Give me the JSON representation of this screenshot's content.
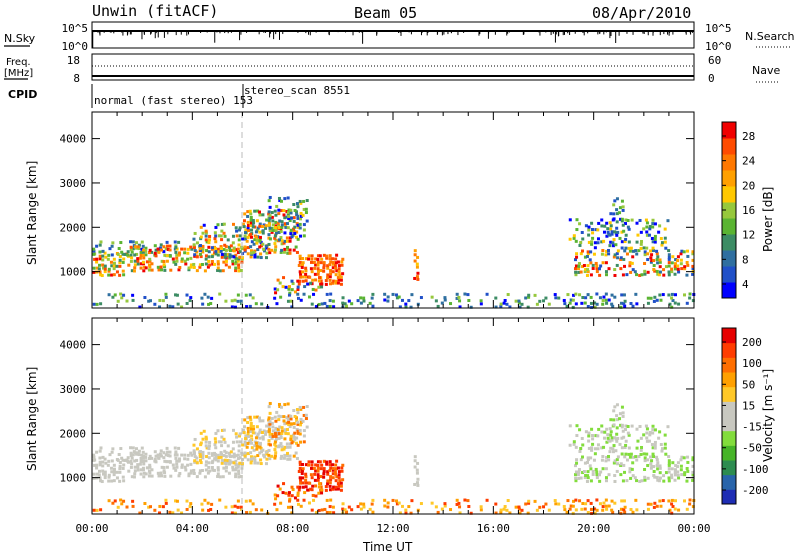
{
  "header": {
    "station": "Unwin (fitACF)",
    "beam": "Beam 05",
    "date": "08/Apr/2010"
  },
  "status_panels": {
    "nsky_label": "N.Sky",
    "nsky_ticks": [
      "10^5",
      "10^0"
    ],
    "nsearch_label": "N.Search",
    "nsearch_ticks": [
      "10^5",
      "10^0"
    ],
    "freq_label_line1": "Freq.",
    "freq_label_line2": "[MHz]",
    "freq_ticks": [
      "18",
      "8"
    ],
    "nave_label": "Nave",
    "nave_ticks": [
      "60",
      "0"
    ],
    "cpid_label": "CPID",
    "cpid_modes": [
      {
        "text": "normal (fast stereo) 153",
        "start_hour": 0
      },
      {
        "text": "stereo_scan 8551",
        "start_hour": 6.1
      }
    ]
  },
  "chart_data": [
    {
      "type": "heatmap",
      "title": "",
      "xlabel": "",
      "ylabel": "Slant Range [km]",
      "xlim": [
        0,
        24
      ],
      "ylim": [
        180,
        4600
      ],
      "yticks": [
        1000,
        2000,
        3000,
        4000
      ],
      "colorbar": {
        "label": "Power [dB]",
        "ticks": [
          "4",
          "8",
          "12",
          "16",
          "20",
          "24",
          "28"
        ],
        "colors": [
          "#0000ff",
          "#2050c8",
          "#2f6fa0",
          "#3c8c64",
          "#5ab432",
          "#96c83c",
          "#ffc800",
          "#ffa000",
          "#ff7800",
          "#ff4b00",
          "#f00000"
        ]
      }
    },
    {
      "type": "heatmap",
      "title": "",
      "xlabel": "Time UT",
      "ylabel": "Slant Range [km]",
      "xlim": [
        0,
        24
      ],
      "ylim": [
        180,
        4600
      ],
      "yticks": [
        1000,
        2000,
        3000,
        4000
      ],
      "xticks": [
        "00:00",
        "04:00",
        "08:00",
        "12:00",
        "16:00",
        "20:00",
        "00:00"
      ],
      "colorbar": {
        "label": "Velocity [m s⁻¹]",
        "ticks": [
          "200",
          "100",
          "50",
          "15",
          "-15",
          "-50",
          "-100",
          "-200"
        ],
        "colors": [
          "#1e2db4",
          "#2864aa",
          "#2d8c50",
          "#46b428",
          "#82dc3c",
          "#c8c8c0",
          "#c8c8c0",
          "#ffc828",
          "#ffa000",
          "#ff6e00",
          "#ff3c00",
          "#e60000"
        ]
      }
    }
  ]
}
